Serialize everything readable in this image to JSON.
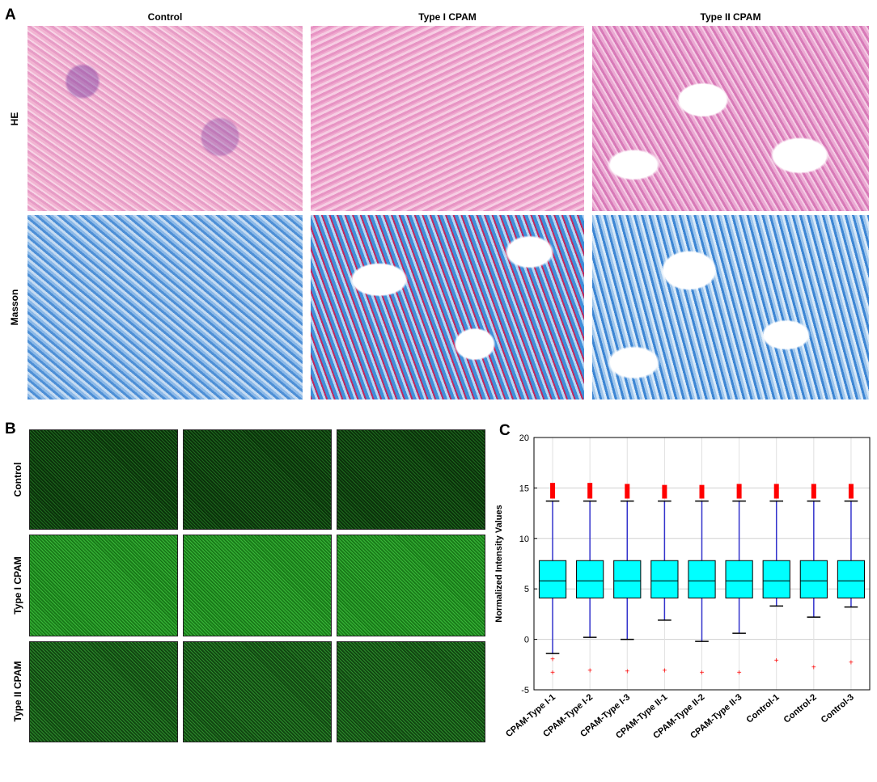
{
  "panel_a": {
    "letter": "A",
    "column_titles": [
      "Control",
      "Type I CPAM",
      "Type II CPAM"
    ],
    "row_labels": [
      "HE",
      "Masson"
    ]
  },
  "panel_b": {
    "letter": "B",
    "row_labels": [
      "Control",
      "Type I CPAM",
      "Type II CPAM"
    ]
  },
  "panel_c": {
    "letter": "C"
  },
  "chart_data": {
    "type": "box",
    "ylabel": "Normalized Intensity Values",
    "xlabel": "",
    "ylim": [
      -5,
      20
    ],
    "yticks": [
      "-5",
      "0",
      "5",
      "10",
      "15",
      "20"
    ],
    "grid": true,
    "categories": [
      "CPAM-Type I-1",
      "CPAM-Type I-2",
      "CPAM-Type I-3",
      "CPAM-Type II-1",
      "CPAM-Type II-2",
      "CPAM-Type II-3",
      "Control-1",
      "Control-2",
      "Control-3"
    ],
    "boxes": [
      {
        "q1": 4.1,
        "median": 5.8,
        "q3": 7.8,
        "whisker_low": -1.4,
        "whisker_high": 13.7,
        "outliers_low": [
          -2.0,
          -3.3
        ],
        "outliers_high_max": 15.5
      },
      {
        "q1": 4.1,
        "median": 5.8,
        "q3": 7.8,
        "whisker_low": 0.2,
        "whisker_high": 13.7,
        "outliers_low": [
          -3.1
        ],
        "outliers_high_max": 15.5
      },
      {
        "q1": 4.1,
        "median": 5.8,
        "q3": 7.8,
        "whisker_low": 0.0,
        "whisker_high": 13.7,
        "outliers_low": [
          -3.2
        ],
        "outliers_high_max": 15.4
      },
      {
        "q1": 4.1,
        "median": 5.8,
        "q3": 7.8,
        "whisker_low": 1.9,
        "whisker_high": 13.7,
        "outliers_low": [
          -3.1
        ],
        "outliers_high_max": 15.3
      },
      {
        "q1": 4.1,
        "median": 5.8,
        "q3": 7.8,
        "whisker_low": -0.2,
        "whisker_high": 13.7,
        "outliers_low": [
          -3.3
        ],
        "outliers_high_max": 15.3
      },
      {
        "q1": 4.1,
        "median": 5.8,
        "q3": 7.8,
        "whisker_low": 0.6,
        "whisker_high": 13.7,
        "outliers_low": [
          -3.3
        ],
        "outliers_high_max": 15.4
      },
      {
        "q1": 4.1,
        "median": 5.8,
        "q3": 7.8,
        "whisker_low": 3.3,
        "whisker_high": 13.7,
        "outliers_low": [
          -2.1
        ],
        "outliers_high_max": 15.4
      },
      {
        "q1": 4.1,
        "median": 5.8,
        "q3": 7.8,
        "whisker_low": 2.2,
        "whisker_high": 13.7,
        "outliers_low": [
          -2.8
        ],
        "outliers_high_max": 15.4
      },
      {
        "q1": 4.1,
        "median": 5.8,
        "q3": 7.8,
        "whisker_low": 3.2,
        "whisker_high": 13.7,
        "outliers_low": [
          -2.3
        ],
        "outliers_high_max": 15.4
      }
    ],
    "colors": {
      "box_fill": "#00ffff",
      "whisker": "#3333cc",
      "outlier": "#ff0000",
      "median": "#000000"
    }
  }
}
